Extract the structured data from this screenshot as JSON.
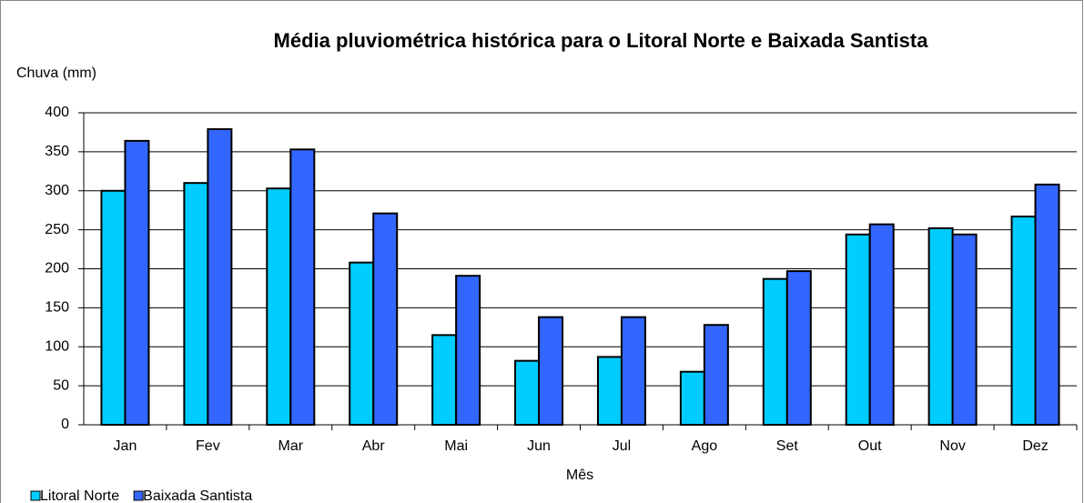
{
  "chart_data": {
    "type": "bar",
    "title": "Média pluviométrica histórica para o Litoral Norte e Baixada Santista",
    "y_label": "Chuva (mm)",
    "x_label": "Mês",
    "categories": [
      "Jan",
      "Fev",
      "Mar",
      "Abr",
      "Mai",
      "Jun",
      "Jul",
      "Ago",
      "Set",
      "Out",
      "Nov",
      "Dez"
    ],
    "series": [
      {
        "name": "Litoral Norte",
        "color": "#00ccff",
        "values": [
          300,
          310,
          303,
          208,
          115,
          82,
          87,
          68,
          187,
          244,
          252,
          267
        ]
      },
      {
        "name": "Baixada Santista",
        "color": "#3366ff",
        "values": [
          364,
          379,
          353,
          271,
          191,
          138,
          138,
          128,
          197,
          257,
          244,
          308
        ]
      }
    ],
    "ylim": [
      0,
      400
    ],
    "yticks": [
      0,
      50,
      100,
      150,
      200,
      250,
      300,
      350,
      400
    ],
    "grid": true,
    "legend": "bottom-left"
  }
}
